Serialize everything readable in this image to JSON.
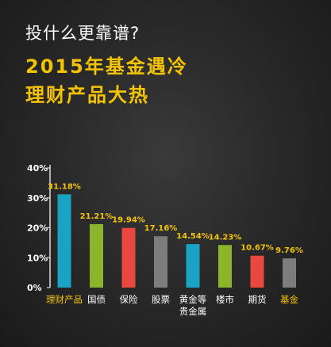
{
  "question": "投什么更靠谱?",
  "headline": [
    "2015年基金遇冷",
    "理财产品大热"
  ],
  "chart_data": {
    "type": "bar",
    "categories": [
      "理财产品",
      "国债",
      "保险",
      "股票",
      "黄金等贵金属",
      "楼市",
      "期货",
      "基金"
    ],
    "category_lines": [
      [
        "理财产品"
      ],
      [
        "国债"
      ],
      [
        "保险"
      ],
      [
        "股票"
      ],
      [
        "黄金等",
        "贵金属"
      ],
      [
        "楼市"
      ],
      [
        "期货"
      ],
      [
        "基金"
      ]
    ],
    "values": [
      31.18,
      21.21,
      19.94,
      17.16,
      14.54,
      14.23,
      10.67,
      9.76
    ],
    "value_labels": [
      "31.18%",
      "21.21%",
      "19.94%",
      "17.16%",
      "14.54%",
      "14.23%",
      "10.67%",
      "9.76%"
    ],
    "bar_colors": [
      "#1aa3c4",
      "#8cb52e",
      "#e8483d",
      "#7d7d7d",
      "#1aa3c4",
      "#8cb52e",
      "#e8483d",
      "#7d7d7d"
    ],
    "label_colors": [
      "#f5c400",
      "#ffffff",
      "#ffffff",
      "#ffffff",
      "#ffffff",
      "#ffffff",
      "#ffffff",
      "#f5c400"
    ],
    "value_label_color": "#f5c400",
    "yticks": [
      "0%",
      "10%",
      "20%",
      "30%",
      "40%"
    ],
    "ylim": [
      0,
      40
    ],
    "grid": false
  }
}
